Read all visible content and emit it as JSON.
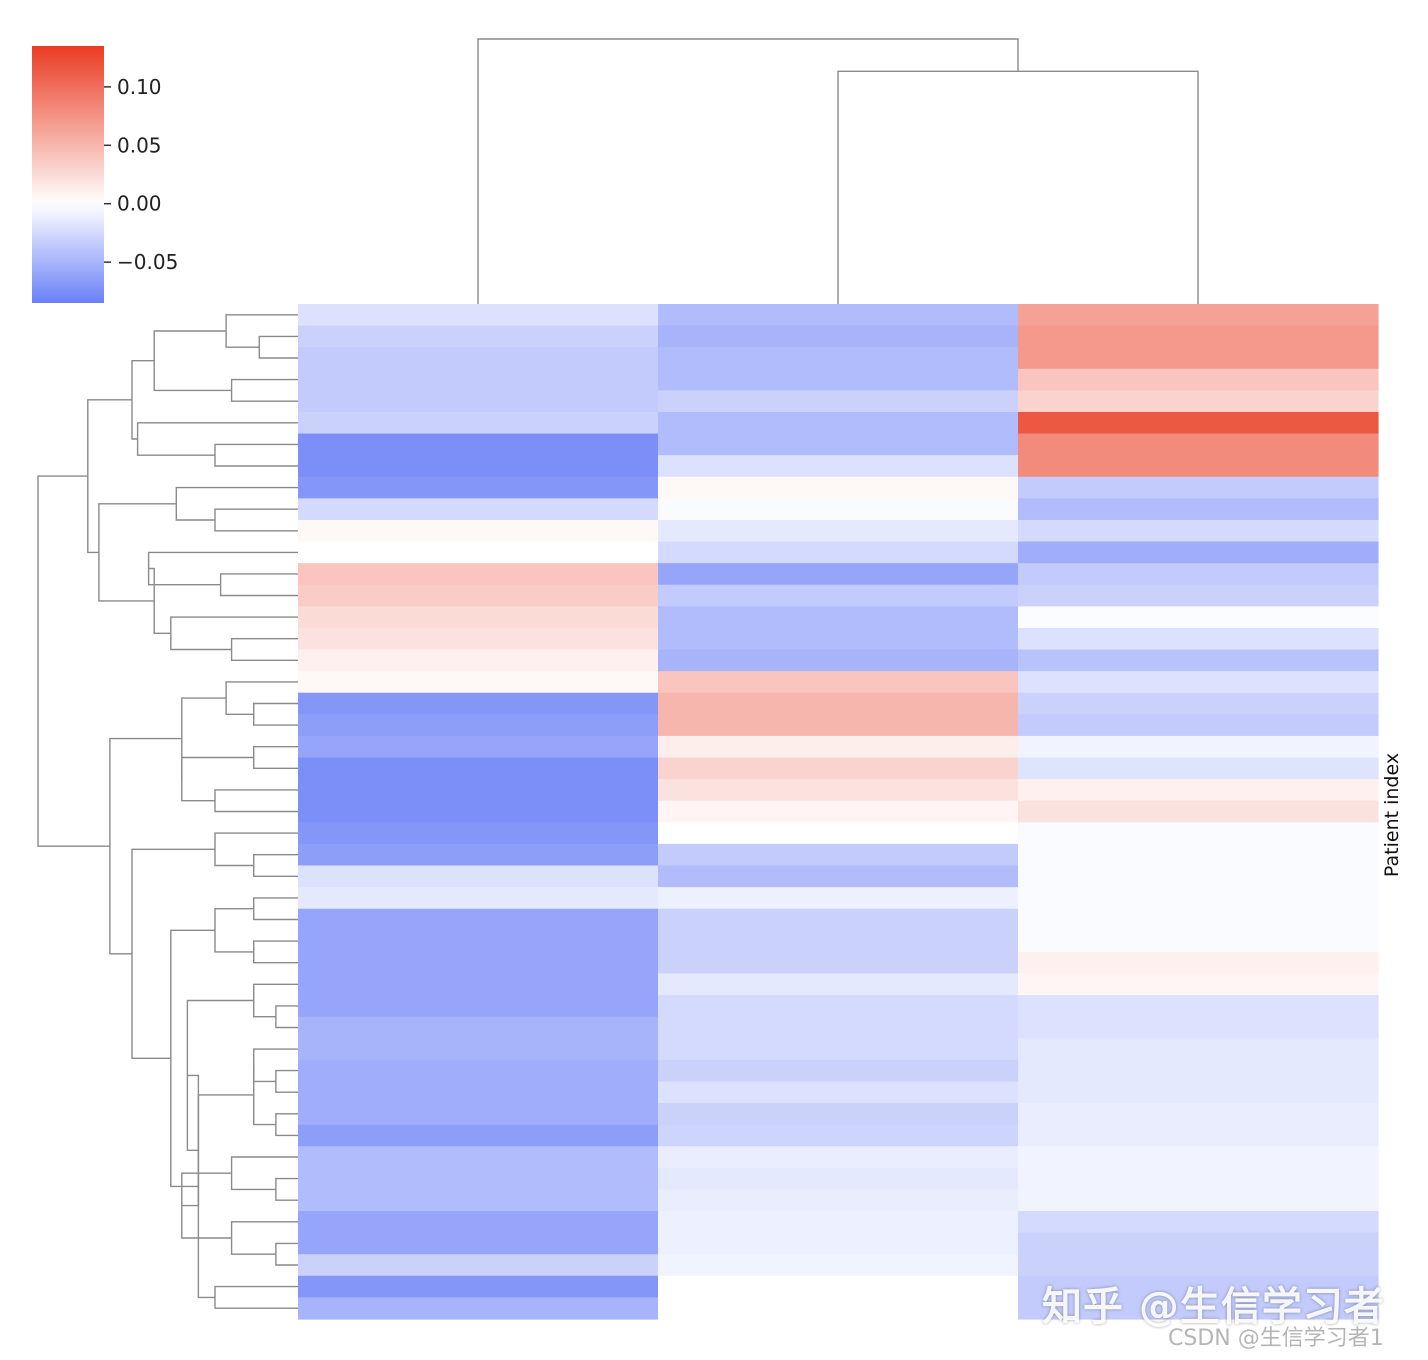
{
  "chart_data": {
    "type": "heatmap",
    "subtype": "clustermap",
    "ylabel": "Patient index",
    "colormap": {
      "low": "#6a80f7",
      "mid": "#ffffff",
      "high": "#ea3b22"
    },
    "colorbar": {
      "vmin": -0.085,
      "vmax": 0.135,
      "ticks": [
        -0.05,
        0.0,
        0.05,
        0.1
      ],
      "tick_labels": [
        "−0.05",
        "0.00",
        "0.05",
        "0.10"
      ]
    },
    "n_rows": 47,
    "n_cols": 3,
    "columns": [
      {
        "index": 0,
        "values": [
          -0.02,
          -0.03,
          -0.035,
          -0.035,
          -0.035,
          -0.03,
          -0.075,
          -0.075,
          -0.07,
          -0.025,
          0.005,
          0.0,
          0.04,
          0.035,
          0.025,
          0.02,
          0.01,
          0.005,
          -0.07,
          -0.065,
          -0.06,
          -0.075,
          -0.075,
          -0.075,
          -0.07,
          -0.065,
          -0.02,
          -0.015,
          -0.06,
          -0.06,
          -0.06,
          -0.06,
          -0.06,
          -0.05,
          -0.05,
          -0.055,
          -0.055,
          -0.055,
          -0.065,
          -0.045,
          -0.045,
          -0.045,
          -0.06,
          -0.06,
          -0.03,
          -0.07,
          -0.05
        ]
      },
      {
        "index": 1,
        "values": [
          -0.045,
          -0.05,
          -0.045,
          -0.045,
          -0.03,
          -0.045,
          -0.045,
          -0.02,
          0.005,
          -0.003,
          -0.015,
          -0.025,
          -0.06,
          -0.035,
          -0.045,
          -0.045,
          -0.05,
          0.04,
          0.05,
          0.05,
          0.012,
          0.03,
          0.02,
          0.007,
          0.0,
          -0.035,
          -0.045,
          -0.01,
          -0.03,
          -0.03,
          -0.03,
          -0.015,
          -0.025,
          -0.025,
          -0.025,
          -0.03,
          -0.02,
          -0.03,
          -0.028,
          -0.012,
          -0.015,
          -0.012,
          -0.01,
          -0.01,
          -0.008,
          0.0,
          0.0
        ]
      },
      {
        "index": 2,
        "values": [
          0.065,
          0.07,
          0.07,
          0.04,
          0.03,
          0.115,
          0.08,
          0.08,
          -0.035,
          -0.045,
          -0.025,
          -0.055,
          -0.035,
          -0.03,
          -0.002,
          -0.02,
          -0.04,
          -0.02,
          -0.03,
          -0.035,
          -0.008,
          -0.018,
          0.01,
          0.02,
          -0.003,
          -0.003,
          -0.003,
          -0.003,
          -0.003,
          -0.003,
          0.01,
          0.007,
          -0.02,
          -0.02,
          -0.015,
          -0.015,
          -0.015,
          -0.012,
          -0.012,
          -0.008,
          -0.008,
          -0.008,
          -0.025,
          -0.03,
          -0.03,
          -0.035,
          -0.035
        ]
      }
    ],
    "row_dendrogram": {
      "orientation": "left",
      "merges": [
        [
          1,
          2,
          0.7
        ],
        [
          0,
          "m0",
          1.3
        ],
        [
          3,
          4,
          1.2
        ],
        [
          "m1",
          "m2",
          2.6
        ],
        [
          6,
          7,
          1.5
        ],
        [
          5,
          "m4",
          2.9
        ],
        [
          "m3",
          "m5",
          3.0
        ],
        [
          9,
          10,
          1.5
        ],
        [
          8,
          "m7",
          2.2
        ],
        [
          12,
          13,
          1.4
        ],
        [
          11,
          "m9",
          2.7
        ],
        [
          15,
          16,
          1.2
        ],
        [
          14,
          "m11",
          2.3
        ],
        [
          "m10",
          "m12",
          2.6
        ],
        [
          "m8",
          "m13",
          3.6
        ],
        [
          "m6",
          "m14",
          3.8
        ],
        [
          18,
          19,
          0.8
        ],
        [
          17,
          "m16",
          1.3
        ],
        [
          20,
          21,
          0.8
        ],
        [
          22,
          23,
          1.5
        ],
        [
          "m18",
          "m19",
          2.1
        ],
        [
          "m17",
          "m20",
          2.1
        ],
        [
          25,
          26,
          0.8
        ],
        [
          24,
          "m22",
          1.5
        ],
        [
          27,
          28,
          0.8
        ],
        [
          29,
          30,
          0.8
        ],
        [
          "m24",
          "m25",
          1.5
        ],
        [
          32,
          33,
          0.4
        ],
        [
          31,
          "m27",
          0.8
        ],
        [
          35,
          36,
          0.4
        ],
        [
          34,
          "m29",
          0.8
        ],
        [
          37,
          38,
          0.4
        ],
        [
          "m30",
          "m31",
          0.8
        ],
        [
          40,
          41,
          0.4
        ],
        [
          39,
          "m33",
          1.2
        ],
        [
          43,
          44,
          0.4
        ],
        [
          42,
          "m35",
          1.2
        ],
        [
          "m34",
          "m36",
          2.1
        ],
        [
          "m32",
          "m37",
          1.8
        ],
        [
          "m28",
          "m38",
          2.0
        ],
        [
          45,
          46,
          1.5
        ],
        [
          "m39",
          "m40",
          1.8
        ],
        [
          "m26",
          "m41",
          2.3
        ],
        [
          "m23",
          "m42",
          3.0
        ],
        [
          "m21",
          "m43",
          3.4
        ],
        [
          "m15",
          "m44",
          4.7
        ]
      ]
    },
    "col_dendrogram": {
      "orientation": "top",
      "merges": [
        [
          1,
          2,
          3.6
        ],
        [
          0,
          "m0",
          4.1
        ]
      ]
    }
  },
  "watermark": {
    "zhihu": "知乎 @生信学习者",
    "csdn": "CSDN @生信学习者1"
  }
}
